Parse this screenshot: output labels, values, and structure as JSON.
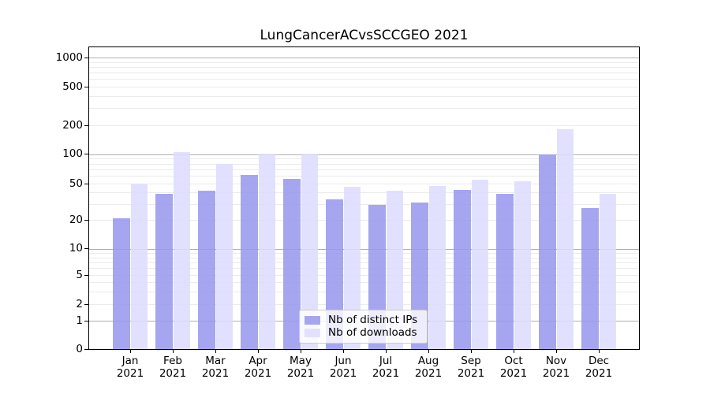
{
  "chart_data": {
    "type": "bar",
    "title": "LungCancerACvsSCCGEO 2021",
    "categories": [
      "Jan",
      "Feb",
      "Mar",
      "Apr",
      "May",
      "Jun",
      "Jul",
      "Aug",
      "Sep",
      "Oct",
      "Nov",
      "Dec"
    ],
    "year": "2021",
    "series": [
      {
        "name": "Nb of distinct IPs",
        "color": "#9999ee",
        "values": [
          21,
          39,
          42,
          62,
          56,
          34,
          29,
          31,
          43,
          39,
          100,
          27
        ]
      },
      {
        "name": "Nb of downloads",
        "color": "#ddddff",
        "values": [
          50,
          105,
          80,
          102,
          102,
          46,
          42,
          47,
          55,
          53,
          181,
          39
        ]
      }
    ],
    "xlabel": "",
    "ylabel": "",
    "yscale": "symlog",
    "ylim": [
      0,
      1300
    ],
    "yticks": [
      0,
      1,
      2,
      5,
      10,
      20,
      50,
      100,
      200,
      500,
      1000
    ],
    "grid": true,
    "grid_major_color": "#b0b0b0",
    "grid_minor_color": "#ebebeb",
    "legend_position": "lower center"
  }
}
